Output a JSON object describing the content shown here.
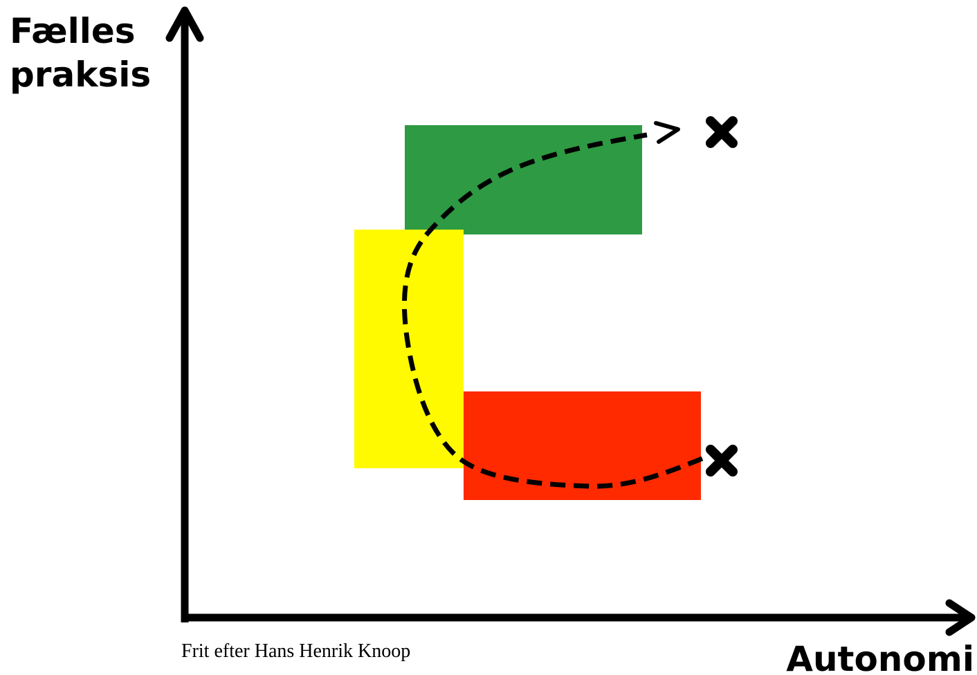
{
  "y_axis_label": [
    "Fælles",
    "praksis"
  ],
  "x_axis_label": "Autonomi",
  "credit": "Frit efter Hans Henrik Knoop"
}
